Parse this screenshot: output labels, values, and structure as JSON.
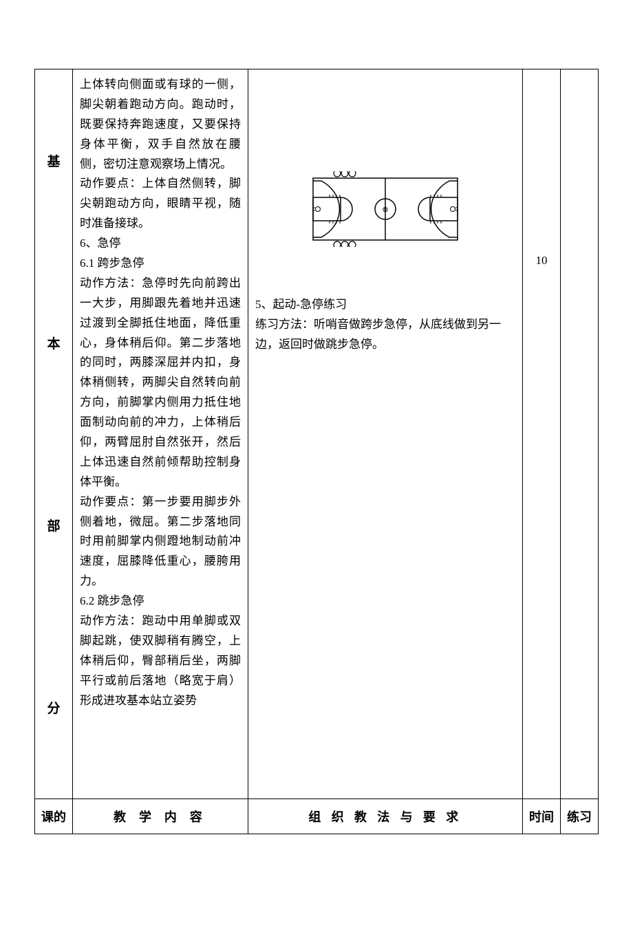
{
  "main_row": {
    "section_label_chars": [
      "基",
      "本",
      "部",
      "分"
    ],
    "content_text": "上体转向侧面或有球的一侧，脚尖朝着跑动方向。跑动时，既要保持奔跑速度，又要保持身体平衡，双手自然放在腰侧，密切注意观察场上情况。\n动作要点：上体自然侧转，脚尖朝跑动方向，眼睛平视，随时准备接球。\n6、急停\n6.1 跨步急停\n动作方法：急停时先向前跨出一大步，用脚跟先着地并迅速过渡到全脚抵住地面，降低重心，身体稍后仰。第二步落地的同时，两膝深屈并内扣，身体稍侧转，两脚尖自然转向前方向，前脚掌内侧用力抵住地面制动向前的冲力，上体稍后仰，两臂屈肘自然张开，然后上体迅速自然前倾帮助控制身体平衡。\n动作要点：第一步要用脚步外侧着地，微屈。第二步落地同时用前脚掌内侧蹬地制动前冲速度，屈膝降低重心，腰胯用力。\n6.2 跳步急停\n动作方法：跑动中用单脚或双脚起跳，使双脚稍有腾空，上体稍后仰，臀部稍后坐，两脚平行或前后落地（略宽于肩）形成进攻基本站立姿势",
    "method_title": "5、起动-急停练习",
    "method_text": "练习方法：听哨音做跨步急停，从底线做到另一边，返回时做跳步急停。",
    "time_value": "10",
    "practice_value": ""
  },
  "header_row": {
    "col1": "课的",
    "col2": "教 学 内 容",
    "col3": "组 织 教 法 与 要 求",
    "col4": "时间",
    "col5": "练习"
  },
  "diagram": {
    "stroke_color": "#000000",
    "background": "#ffffff"
  }
}
